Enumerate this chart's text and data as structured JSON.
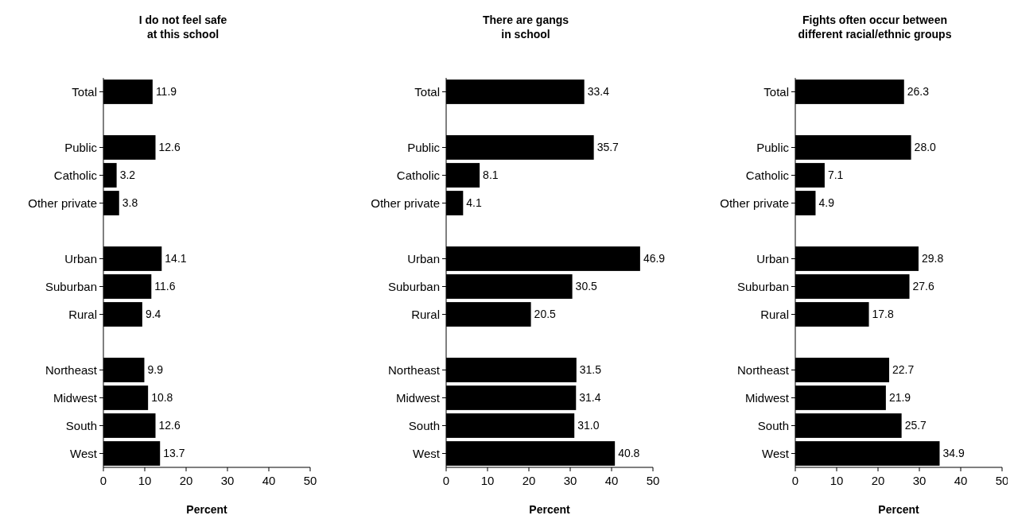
{
  "chart_data": [
    {
      "type": "bar",
      "orientation": "horizontal",
      "title": "I do not feel safe at this school",
      "xlabel": "Percent",
      "categories": [
        "Total",
        null,
        "Public",
        "Catholic",
        "Other private",
        null,
        "Urban",
        "Suburban",
        "Rural",
        null,
        "Northeast",
        "Midwest",
        "South",
        "West"
      ],
      "values": [
        11.9,
        null,
        12.6,
        3.2,
        3.8,
        null,
        14.1,
        11.6,
        9.4,
        null,
        9.9,
        10.8,
        12.6,
        13.7
      ],
      "value_labels": [
        "11.9",
        null,
        "12.6",
        "3.2",
        "3.8",
        null,
        "14.1",
        "11.6",
        "9.4",
        null,
        "9.9",
        "10.8",
        "12.6",
        "13.7"
      ],
      "color": "#000000",
      "xlim": [
        0,
        50
      ],
      "xticks": [
        0,
        10,
        20,
        30,
        40,
        50
      ],
      "grid": false
    },
    {
      "type": "bar",
      "orientation": "horizontal",
      "title": "There are gangs in school",
      "xlabel": "Percent",
      "categories": [
        "Total",
        null,
        "Public",
        "Catholic",
        "Other private",
        null,
        "Urban",
        "Suburban",
        "Rural",
        null,
        "Northeast",
        "Midwest",
        "South",
        "West"
      ],
      "values": [
        33.4,
        null,
        35.7,
        8.1,
        4.1,
        null,
        46.9,
        30.5,
        20.5,
        null,
        31.5,
        31.4,
        31.0,
        40.8
      ],
      "value_labels": [
        "33.4",
        null,
        "35.7",
        "8.1",
        "4.1",
        null,
        "46.9",
        "30.5",
        "20.5",
        null,
        "31.5",
        "31.4",
        "31.0",
        "40.8"
      ],
      "color": "#000000",
      "xlim": [
        0,
        50
      ],
      "xticks": [
        0,
        10,
        20,
        30,
        40,
        50
      ],
      "grid": false
    },
    {
      "type": "bar",
      "orientation": "horizontal",
      "title": "Fights often occur between different racial/ethnic groups",
      "xlabel": "Percent",
      "categories": [
        "Total",
        null,
        "Public",
        "Catholic",
        "Other private",
        null,
        "Urban",
        "Suburban",
        "Rural",
        null,
        "Northeast",
        "Midwest",
        "South",
        "West"
      ],
      "values": [
        26.3,
        null,
        28.0,
        7.1,
        4.9,
        null,
        29.8,
        27.6,
        17.8,
        null,
        22.7,
        21.9,
        25.7,
        34.9
      ],
      "value_labels": [
        "26.3",
        null,
        "28.0",
        "7.1",
        "4.9",
        null,
        "29.8",
        "27.6",
        "17.8",
        null,
        "22.7",
        "21.9",
        "25.7",
        "34.9"
      ],
      "color": "#000000",
      "xlim": [
        0,
        50
      ],
      "xticks": [
        0,
        10,
        20,
        30,
        40,
        50
      ],
      "grid": false
    }
  ]
}
